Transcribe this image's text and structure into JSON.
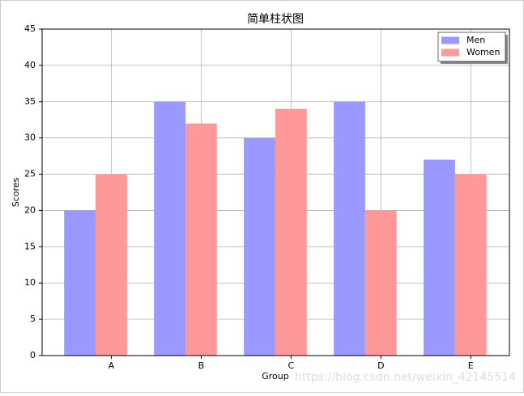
{
  "chart_data": {
    "type": "bar",
    "title": "简单柱状图",
    "x_label": "Group",
    "y_label": "Scores",
    "categories": [
      "A",
      "B",
      "C",
      "D",
      "E"
    ],
    "series": [
      {
        "name": "Men",
        "color": "#9999ff",
        "values": [
          20,
          35,
          30,
          35,
          27
        ]
      },
      {
        "name": "Women",
        "color": "#ff9999",
        "values": [
          25,
          32,
          34,
          20,
          25
        ]
      }
    ],
    "ylim": [
      0,
      45
    ],
    "yticks": [
      0,
      5,
      10,
      15,
      20,
      25,
      30,
      35,
      40,
      45
    ],
    "grid": true,
    "legend": "upper right",
    "watermark": "https://blog.csdn.net/weixin_42145514"
  }
}
